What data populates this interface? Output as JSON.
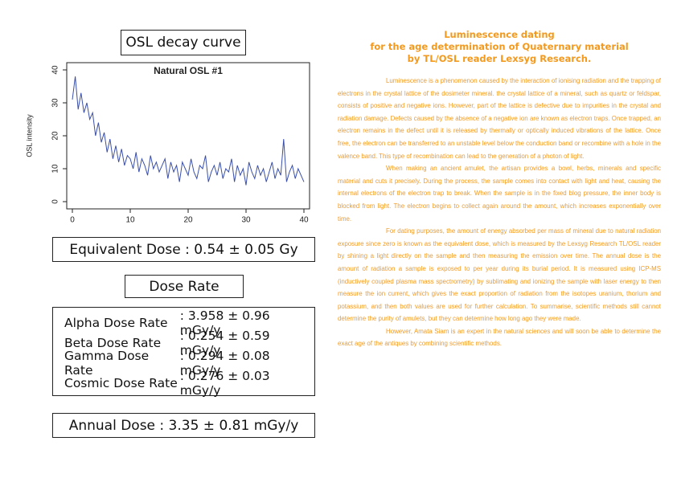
{
  "heading": "OSL decay curve",
  "chart_data": {
    "type": "line",
    "title": "Natural OSL #1",
    "ylabel": "OSL intensity",
    "color": "#3a4fa8",
    "xlim": [
      0,
      40
    ],
    "xticks": [
      0,
      10,
      20,
      30,
      40
    ],
    "ylim": [
      0,
      40
    ],
    "yticks": [
      0,
      10,
      20,
      30,
      40
    ],
    "x": [
      0,
      0.5,
      1,
      1.5,
      2,
      2.5,
      3,
      3.5,
      4,
      4.5,
      5,
      5.5,
      6,
      6.5,
      7,
      7.5,
      8,
      8.5,
      9,
      9.5,
      10,
      10.5,
      11,
      11.5,
      12,
      12.5,
      13,
      13.5,
      14,
      14.5,
      15,
      15.5,
      16,
      16.5,
      17,
      17.5,
      18,
      18.5,
      19,
      19.5,
      20,
      20.5,
      21,
      21.5,
      22,
      22.5,
      23,
      23.5,
      24,
      24.5,
      25,
      25.5,
      26,
      26.5,
      27,
      27.5,
      28,
      28.5,
      29,
      29.5,
      30,
      30.5,
      31,
      31.5,
      32,
      32.5,
      33,
      33.5,
      34,
      34.5,
      35,
      35.5,
      36,
      36.5,
      37,
      37.5,
      38,
      38.5,
      39,
      39.5,
      40
    ],
    "values": [
      31,
      38,
      28,
      33,
      27,
      30,
      25,
      27,
      20,
      24,
      18,
      21,
      15,
      19,
      13,
      17,
      12,
      16,
      11,
      14,
      13,
      10,
      15,
      9,
      13,
      11,
      8,
      14,
      10,
      12,
      9,
      11,
      13,
      7,
      12,
      9,
      11,
      6,
      12,
      10,
      8,
      13,
      9,
      7,
      11,
      10,
      14,
      6,
      9,
      11,
      8,
      12,
      7,
      10,
      9,
      13,
      6,
      11,
      8,
      10,
      5,
      12,
      9,
      7,
      11,
      8,
      10,
      6,
      9,
      12,
      7,
      10,
      8,
      19,
      6,
      9,
      11,
      7,
      10,
      8,
      6
    ]
  },
  "equivalent_dose": "Equivalent Dose : 0.54 ± 0.05 Gy",
  "dose_rate_heading": "Dose Rate",
  "dose_table": {
    "rows": [
      [
        "Alpha Dose Rate",
        ": 3.958 ± 0.96 mGy/y"
      ],
      [
        "Beta Dose Rate",
        ": 0.254 ± 0.59 mGy/y"
      ],
      [
        "Gamma Dose Rate",
        ": 0.294 ± 0.08 mGy/y"
      ],
      [
        "Cosmic Dose Rate",
        ": 0.276 ± 0.03 mGy/y"
      ]
    ]
  },
  "annual_dose": "Annual Dose : 3.35 ± 0.81 mGy/y",
  "article": {
    "title": [
      "Luminescence dating",
      "for the age determination of Quaternary material",
      "by TL/OSL reader Lexsyg Research."
    ],
    "paragraphs": [
      "Luminescence is a phenomenon caused by the interaction of ionising radiation and the trapping of electrons in the crystal lattice of the dosimeter mineral. the crystal lattice of a mineral, such as quartz or feldspar, consists of positive and negative ions. However, part of the lattice is defective due to impurities in the crystal and radiation damage. Defects caused by the absence of a negative ion are known as electron traps. Once trapped, an electron remains in the defect until it is released by thermally or optically induced vibrations of the lattice. Once free, the electron can be transferred to an unstable level below the conduction band or recombine with a hole in the valence band. This type of recombination can lead to the generation of a photon of light.",
      "When making an ancient amulet, the artisan provides a bowl, herbs, minerals and specific material and cuts it precisely. During the process, the sample comes into contact with light and heat, causing the internal electrons of the electron trap to break. When the sample is in the fixed blog pressure, the inner body is blocked from light. The electron begins to collect again around the amount, which increases exponentially over time.",
      "For dating purposes, the amount of energy absorbed per mass of mineral due to natural radiation exposure since zero is known as the equivalent dose, which is measured by the Lexsyg Research TL/OSL reader by shining a light directly on the sample and then measuring the emission over time. The annual dose is the amount of radiation a sample is exposed to per year during its burial period. It is measured using ICP-MS (inductively coupled plasma mass spectrometry) by sublimating and ionizing the sample with laser energy to then measure the ion current, which gives the exact proportion of radiation from the isotopes uranium, thorium and potassium, and then both values are used for further calculation. To summarise, scientific methods still cannot determine the purity of amulets, but they can determine how long ago they were made.",
      "However, Amata Siam is an expert in the natural sciences and will soon be able to determine the exact age of the antiques by combining scientific methods."
    ]
  }
}
